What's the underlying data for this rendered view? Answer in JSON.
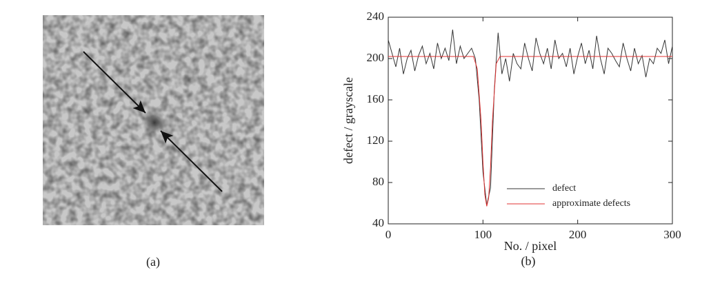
{
  "image_panel": {
    "label": "(a)"
  },
  "chart_data": {
    "type": "line",
    "panel_label": "(b)",
    "x_label": "No. / pixel",
    "y_label": "defect / grayscale",
    "xlim": [
      0,
      300
    ],
    "xticks": [
      0,
      100,
      200,
      300
    ],
    "ylim": [
      40,
      240
    ],
    "yticks": [
      40,
      80,
      120,
      160,
      200,
      240
    ],
    "legend": "lower right",
    "series": [
      {
        "name": "defect",
        "color": "#333333",
        "x": [
          0,
          4,
          8,
          12,
          16,
          20,
          24,
          28,
          32,
          36,
          40,
          44,
          48,
          52,
          56,
          60,
          64,
          68,
          72,
          76,
          80,
          84,
          88,
          92,
          96,
          100,
          104,
          108,
          112,
          116,
          120,
          124,
          128,
          132,
          136,
          140,
          144,
          148,
          152,
          156,
          160,
          164,
          168,
          172,
          176,
          180,
          184,
          188,
          192,
          196,
          200,
          204,
          208,
          212,
          216,
          220,
          224,
          228,
          232,
          236,
          240,
          244,
          248,
          252,
          256,
          260,
          264,
          268,
          272,
          276,
          280,
          284,
          288,
          292,
          296,
          300
        ],
        "values": [
          218,
          205,
          192,
          210,
          185,
          200,
          208,
          188,
          203,
          212,
          195,
          205,
          190,
          215,
          200,
          210,
          198,
          228,
          195,
          212,
          200,
          205,
          210,
          200,
          160,
          90,
          58,
          75,
          170,
          225,
          185,
          200,
          178,
          205,
          195,
          190,
          215,
          200,
          188,
          220,
          205,
          195,
          210,
          190,
          218,
          200,
          205,
          192,
          210,
          185,
          202,
          215,
          195,
          208,
          190,
          222,
          200,
          185,
          210,
          205,
          198,
          192,
          215,
          200,
          188,
          210,
          195,
          203,
          182,
          200,
          195,
          210,
          205,
          218,
          195,
          212
        ]
      },
      {
        "name": "approximate defects",
        "color": "#e03030",
        "x": [
          0,
          90,
          94,
          98,
          100,
          102,
          104,
          106,
          108,
          110,
          114,
          118,
          300
        ],
        "values": [
          202,
          202,
          190,
          140,
          100,
          68,
          57,
          65,
          95,
          140,
          195,
          202,
          202
        ]
      }
    ]
  }
}
